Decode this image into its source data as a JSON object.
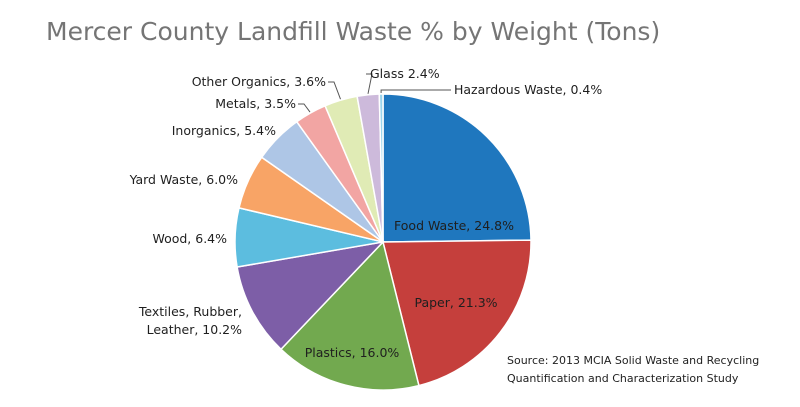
{
  "chart_data": {
    "type": "pie",
    "title": "Mercer County Landfill Waste % by Weight (Tons)",
    "slices": [
      {
        "label": "Food Waste, 24.8%",
        "name": "Food Waste",
        "value": 24.8,
        "color": "#1f77be"
      },
      {
        "label": "Paper, 21.3%",
        "name": "Paper",
        "value": 21.3,
        "color": "#c53f3c"
      },
      {
        "label": "Plastics, 16.0%",
        "name": "Plastics",
        "value": 16.0,
        "color": "#72a94f"
      },
      {
        "label_lines": [
          "Textiles, Rubber,",
          "Leather, 10.2%"
        ],
        "name": "Textiles, Rubber, Leather",
        "value": 10.2,
        "color": "#7d5ea7"
      },
      {
        "label": "Wood, 6.4%",
        "name": "Wood",
        "value": 6.4,
        "color": "#5cbddf"
      },
      {
        "label": "Yard Waste, 6.0%",
        "name": "Yard Waste",
        "value": 6.0,
        "color": "#f8a466"
      },
      {
        "label": "Inorganics, 5.4%",
        "name": "Inorganics",
        "value": 5.4,
        "color": "#aec6e6"
      },
      {
        "label": "Metals, 3.5%",
        "name": "Metals",
        "value": 3.5,
        "color": "#f2a5a3"
      },
      {
        "label": "Other Organics, 3.6%",
        "name": "Other Organics",
        "value": 3.6,
        "color": "#e0ebb5"
      },
      {
        "label": "Glass 2.4%",
        "name": "Glass",
        "value": 2.4,
        "color": "#cdbadb"
      },
      {
        "label": "Hazardous Waste, 0.4%",
        "name": "Hazardous Waste",
        "value": 0.4,
        "color": "#9ad4ec"
      }
    ],
    "source": [
      "Source: 2013 MCIA Solid Waste and Recycling",
      "Quantification and Characterization Study"
    ]
  }
}
